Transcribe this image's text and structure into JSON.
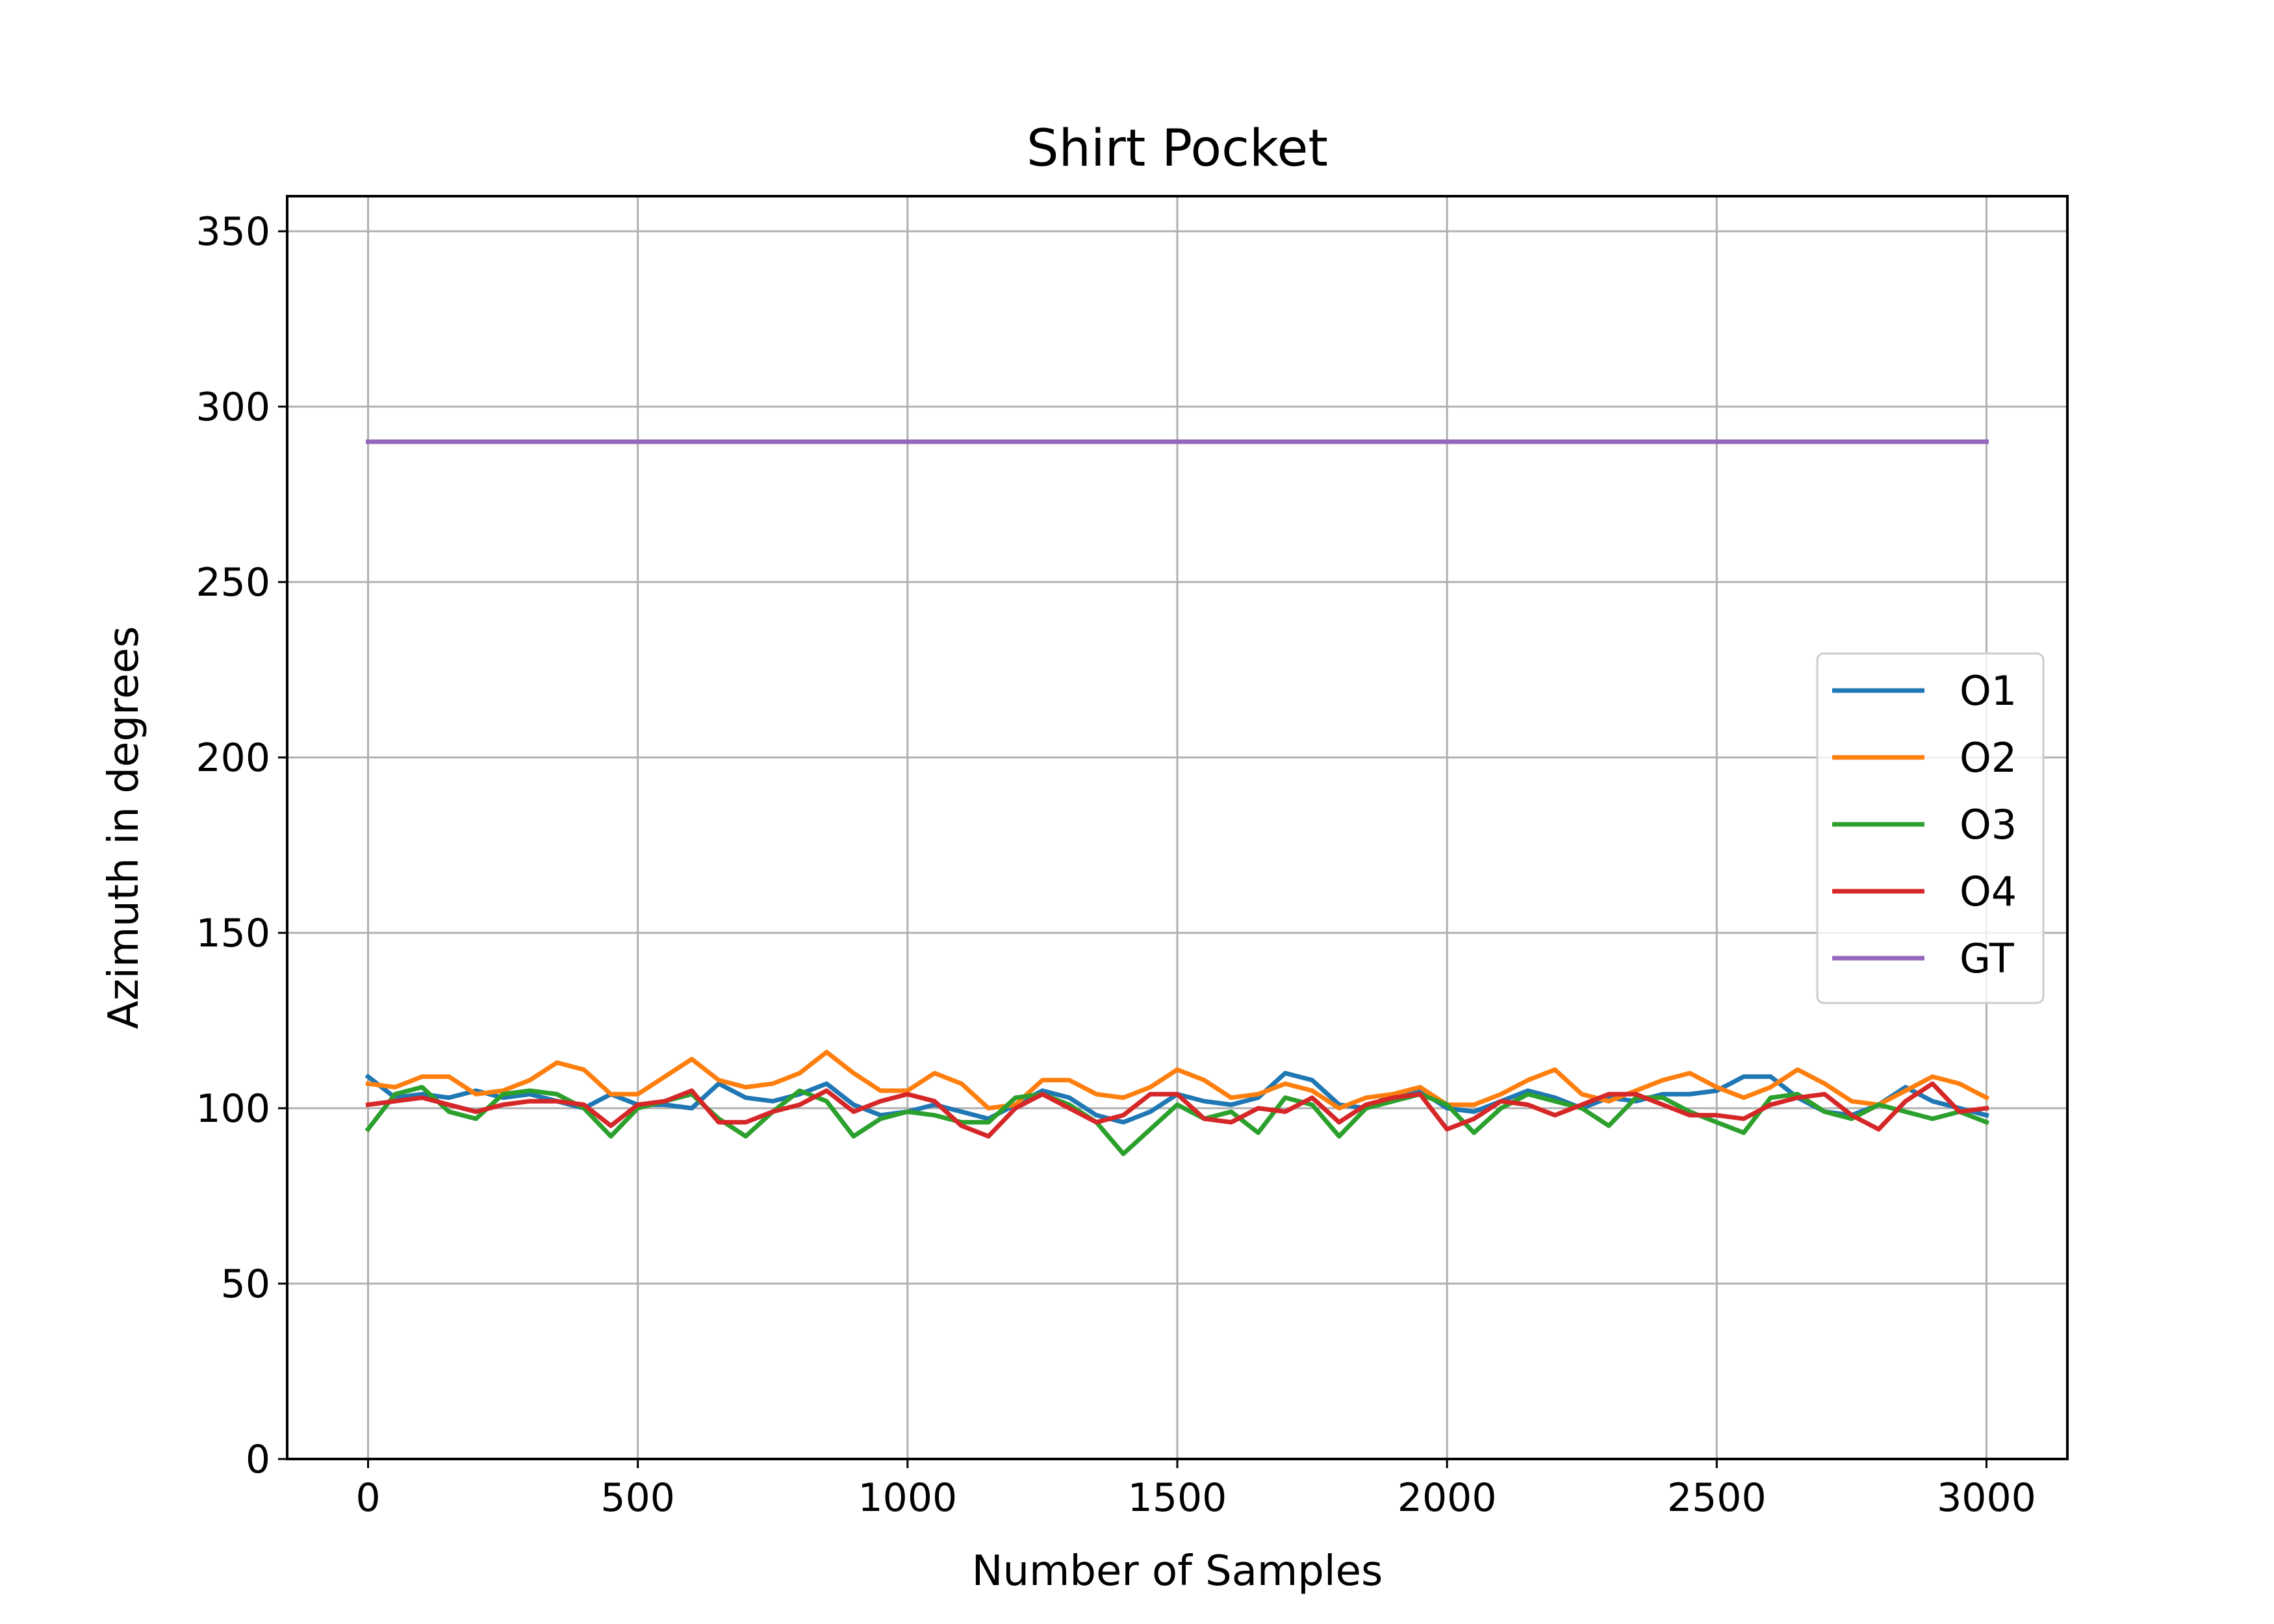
{
  "chart_data": {
    "type": "line",
    "title": "Shirt Pocket",
    "xlabel": "Number of Samples",
    "ylabel": "Azimuth in degrees",
    "xlim": [
      -150,
      3150
    ],
    "ylim": [
      0,
      360
    ],
    "xticks": [
      0,
      500,
      1000,
      1500,
      2000,
      2500,
      3000
    ],
    "yticks": [
      0,
      50,
      100,
      150,
      200,
      250,
      300,
      350
    ],
    "grid": true,
    "legend_position": "center-right",
    "x": [
      0,
      50,
      100,
      150,
      200,
      250,
      300,
      350,
      400,
      450,
      500,
      550,
      600,
      650,
      700,
      750,
      800,
      850,
      900,
      950,
      1000,
      1050,
      1100,
      1150,
      1200,
      1250,
      1300,
      1350,
      1400,
      1450,
      1500,
      1550,
      1600,
      1650,
      1700,
      1750,
      1800,
      1850,
      1900,
      1950,
      2000,
      2050,
      2100,
      2150,
      2200,
      2250,
      2300,
      2350,
      2400,
      2450,
      2500,
      2550,
      2600,
      2650,
      2700,
      2750,
      2800,
      2850,
      2900,
      2950,
      3000
    ],
    "series": [
      {
        "name": "O1",
        "color": "#1f77b4",
        "values": [
          109,
          103,
          104,
          103,
          105,
          103,
          104,
          102,
          100,
          104,
          101,
          101,
          100,
          107,
          103,
          102,
          104,
          107,
          101,
          98,
          99,
          101,
          99,
          97,
          101,
          105,
          103,
          98,
          96,
          99,
          104,
          102,
          101,
          103,
          110,
          108,
          101,
          100,
          104,
          105,
          100,
          99,
          102,
          105,
          103,
          100,
          103,
          102,
          104,
          104,
          105,
          109,
          109,
          103,
          99,
          98,
          101,
          106,
          102,
          100,
          98
        ]
      },
      {
        "name": "O2",
        "color": "#ff7f0e",
        "values": [
          107,
          106,
          109,
          109,
          104,
          105,
          108,
          113,
          111,
          104,
          104,
          109,
          114,
          108,
          106,
          107,
          110,
          116,
          110,
          105,
          105,
          110,
          107,
          100,
          101,
          108,
          108,
          104,
          103,
          106,
          111,
          108,
          103,
          104,
          107,
          105,
          100,
          103,
          104,
          106,
          101,
          101,
          104,
          108,
          111,
          104,
          102,
          105,
          108,
          110,
          106,
          103,
          106,
          111,
          107,
          102,
          101,
          105,
          109,
          107,
          103
        ]
      },
      {
        "name": "O3",
        "color": "#2ca02c",
        "values": [
          94,
          104,
          106,
          99,
          97,
          104,
          105,
          104,
          100,
          92,
          100,
          102,
          104,
          97,
          92,
          99,
          105,
          102,
          92,
          97,
          99,
          98,
          96,
          96,
          103,
          104,
          101,
          96,
          87,
          94,
          101,
          97,
          99,
          93,
          103,
          101,
          92,
          100,
          102,
          104,
          101,
          93,
          100,
          104,
          102,
          100,
          95,
          103,
          103,
          99,
          96,
          93,
          103,
          104,
          99,
          97,
          101,
          99,
          97,
          99,
          96
        ]
      },
      {
        "name": "O4",
        "color": "#d62728",
        "values": [
          101,
          102,
          103,
          101,
          99,
          101,
          102,
          102,
          101,
          95,
          101,
          102,
          105,
          96,
          96,
          99,
          101,
          105,
          99,
          102,
          104,
          102,
          95,
          92,
          100,
          104,
          100,
          96,
          98,
          104,
          104,
          97,
          96,
          100,
          99,
          103,
          96,
          101,
          103,
          104,
          94,
          97,
          102,
          101,
          98,
          101,
          104,
          104,
          101,
          98,
          98,
          97,
          101,
          103,
          104,
          98,
          94,
          102,
          107,
          99,
          100
        ]
      },
      {
        "name": "GT",
        "color": "#9467bd",
        "values": [
          290,
          290,
          290,
          290,
          290,
          290,
          290,
          290,
          290,
          290,
          290,
          290,
          290,
          290,
          290,
          290,
          290,
          290,
          290,
          290,
          290,
          290,
          290,
          290,
          290,
          290,
          290,
          290,
          290,
          290,
          290,
          290,
          290,
          290,
          290,
          290,
          290,
          290,
          290,
          290,
          290,
          290,
          290,
          290,
          290,
          290,
          290,
          290,
          290,
          290,
          290,
          290,
          290,
          290,
          290,
          290,
          290,
          290,
          290,
          290,
          290
        ]
      }
    ]
  }
}
